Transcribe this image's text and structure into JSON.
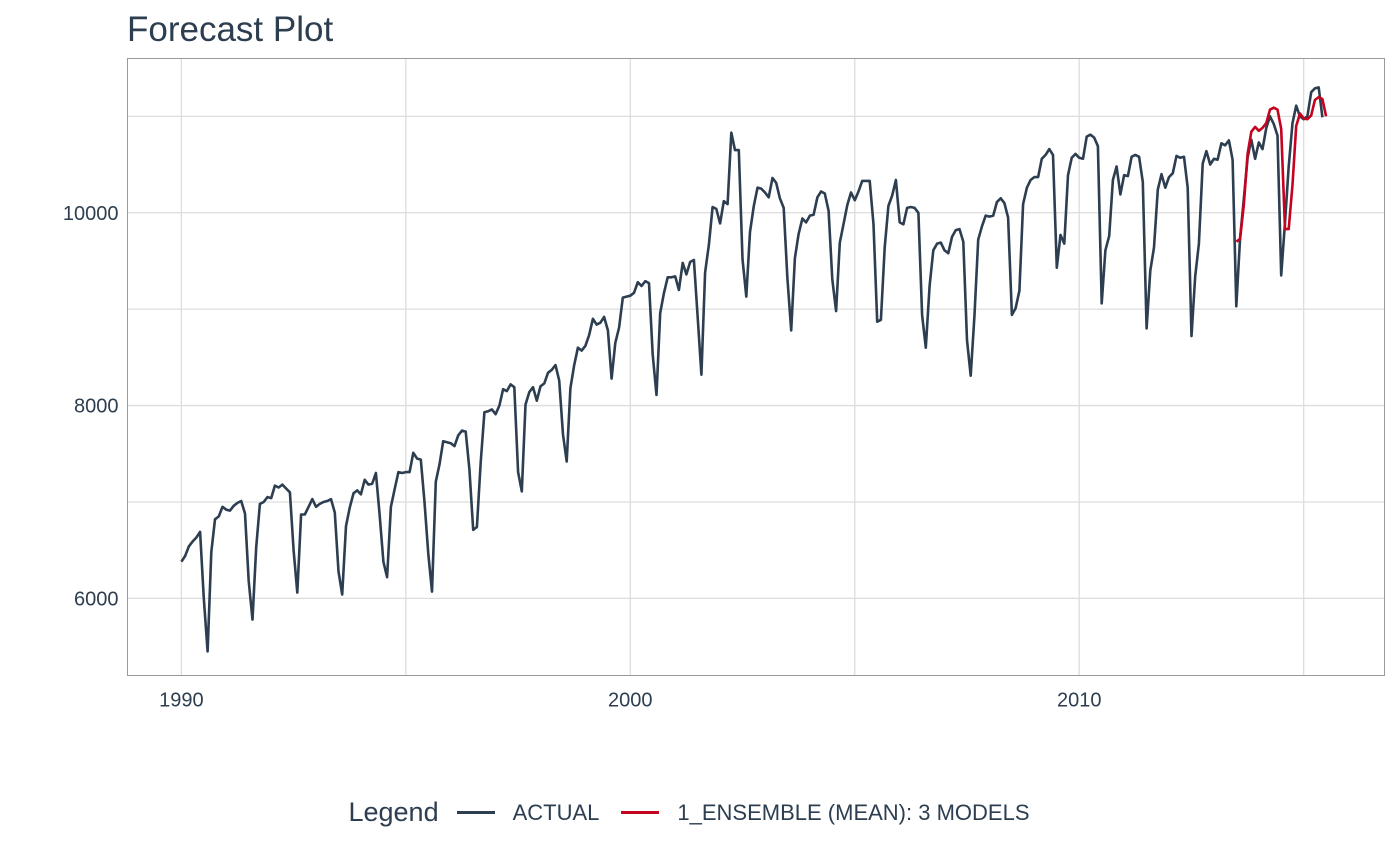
{
  "chart_data": {
    "type": "line",
    "title": "Forecast Plot",
    "xlabel": "",
    "ylabel": "",
    "xlim": [
      1988.8,
      2016.8
    ],
    "ylim": [
      5200,
      11600
    ],
    "x_ticks": [
      1990,
      2000,
      2010
    ],
    "x_tick_labels": [
      "1990",
      "2000",
      "2010"
    ],
    "y_ticks": [
      6000,
      8000,
      10000
    ],
    "y_tick_labels": [
      "6000",
      "8000",
      "10000"
    ],
    "y_minor_gridlines": [
      7000,
      9000,
      11000
    ],
    "x_minor_gridlines": [
      1995,
      2005,
      2015
    ],
    "grid": true,
    "legend": {
      "title": "Legend",
      "position": "bottom",
      "entries": [
        "ACTUAL",
        "1_ENSEMBLE (MEAN): 3 MODELS"
      ]
    },
    "series": [
      {
        "name": "ACTUAL",
        "color": "#2c3e50",
        "x_start": 1990.0,
        "x_step": 0.083333,
        "values": [
          6380,
          6440,
          6540,
          6590,
          6630,
          6690,
          6000,
          5450,
          6480,
          6820,
          6850,
          6950,
          6920,
          6910,
          6960,
          6990,
          7010,
          6880,
          6180,
          5780,
          6530,
          6980,
          7000,
          7050,
          7040,
          7170,
          7150,
          7180,
          7140,
          7100,
          6500,
          6060,
          6870,
          6870,
          6950,
          7030,
          6950,
          6980,
          7000,
          7010,
          7030,
          6890,
          6280,
          6040,
          6750,
          6940,
          7090,
          7120,
          7080,
          7230,
          7180,
          7190,
          7300,
          6870,
          6380,
          6220,
          6950,
          7130,
          7310,
          7300,
          7310,
          7310,
          7510,
          7450,
          7440,
          7000,
          6460,
          6070,
          7210,
          7390,
          7630,
          7620,
          7610,
          7580,
          7690,
          7740,
          7730,
          7340,
          6710,
          6740,
          7410,
          7930,
          7940,
          7960,
          7910,
          8000,
          8170,
          8150,
          8220,
          8190,
          7310,
          7110,
          8010,
          8140,
          8190,
          8050,
          8200,
          8230,
          8340,
          8370,
          8420,
          8260,
          7700,
          7420,
          8180,
          8420,
          8600,
          8570,
          8620,
          8730,
          8900,
          8840,
          8860,
          8920,
          8780,
          8280,
          8650,
          8810,
          9120,
          9130,
          9140,
          9170,
          9280,
          9240,
          9290,
          9270,
          8530,
          8110,
          8960,
          9170,
          9330,
          9330,
          9340,
          9200,
          9480,
          9360,
          9490,
          9510,
          8930,
          8320,
          9380,
          9670,
          10060,
          10040,
          9890,
          10120,
          10090,
          10830,
          10650,
          10650,
          9520,
          9130,
          9800,
          10070,
          10260,
          10250,
          10210,
          10160,
          10360,
          10310,
          10150,
          10050,
          9320,
          8780,
          9530,
          9780,
          9940,
          9900,
          9970,
          9980,
          10160,
          10220,
          10200,
          10020,
          9310,
          8980,
          9690,
          9880,
          10080,
          10210,
          10130,
          10220,
          10330,
          10330,
          10330,
          9880,
          8870,
          8890,
          9640,
          10070,
          10180,
          10340,
          9900,
          9880,
          10050,
          10060,
          10050,
          10000,
          8940,
          8600,
          9240,
          9610,
          9680,
          9690,
          9610,
          9580,
          9750,
          9820,
          9830,
          9700,
          8680,
          8310,
          8940,
          9720,
          9860,
          9970,
          9960,
          9970,
          10110,
          10150,
          10100,
          9950,
          8940,
          9010,
          9190,
          10090,
          10260,
          10340,
          10370,
          10370,
          10560,
          10600,
          10660,
          10600,
          9430,
          9770,
          9680,
          10390,
          10570,
          10610,
          10570,
          10560,
          10790,
          10810,
          10780,
          10690,
          9060,
          9610,
          9760,
          10340,
          10480,
          10190,
          10390,
          10380,
          10580,
          10600,
          10580,
          10320,
          8800,
          9400,
          9640,
          10240,
          10400,
          10260,
          10370,
          10410,
          10590,
          10570,
          10580,
          10260,
          8720,
          9340,
          9680,
          10510,
          10640,
          10500,
          10560,
          10550,
          10720,
          10700,
          10750,
          10550,
          9030,
          9740,
          10140,
          10570,
          10760,
          10560,
          10730,
          10660,
          10880,
          11000,
          10920,
          10800,
          9350,
          9900,
          10480,
          10930,
          11110,
          11000,
          10970,
          11000,
          11250,
          11290,
          11300,
          10990
        ]
      },
      {
        "name": "1_ENSEMBLE (MEAN): 3 MODELS",
        "color": "#c40320",
        "x_start": 2013.5,
        "x_step": 0.083333,
        "values": [
          9700,
          9730,
          10080,
          10610,
          10840,
          10890,
          10850,
          10880,
          10930,
          11070,
          11090,
          11070,
          10870,
          9830,
          9830,
          10290,
          10900,
          11030,
          10980,
          10970,
          11010,
          11170,
          11200,
          11180,
          11000
        ]
      }
    ]
  }
}
